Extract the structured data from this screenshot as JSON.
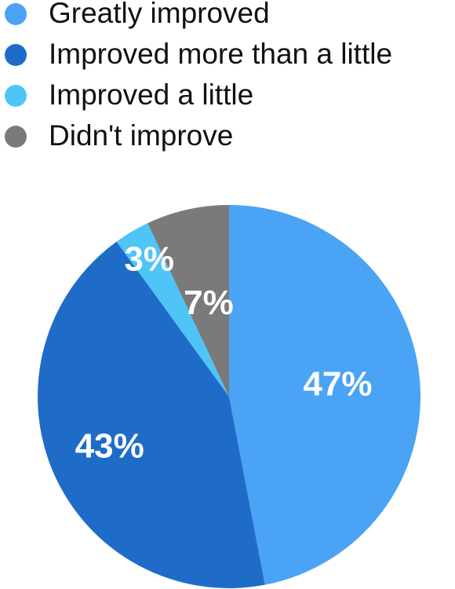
{
  "chart_data": {
    "type": "pie",
    "categories": [
      "Greatly improved",
      "Improved more than a little",
      "Improved a little",
      "Didn't improve"
    ],
    "values": [
      47,
      43,
      3,
      7
    ],
    "value_labels": [
      "47%",
      "43%",
      "3%",
      "7%"
    ],
    "colors": [
      "#4aa3f5",
      "#1f6cc8",
      "#4fc4f7",
      "#7a7a7a"
    ],
    "legend": "top"
  }
}
